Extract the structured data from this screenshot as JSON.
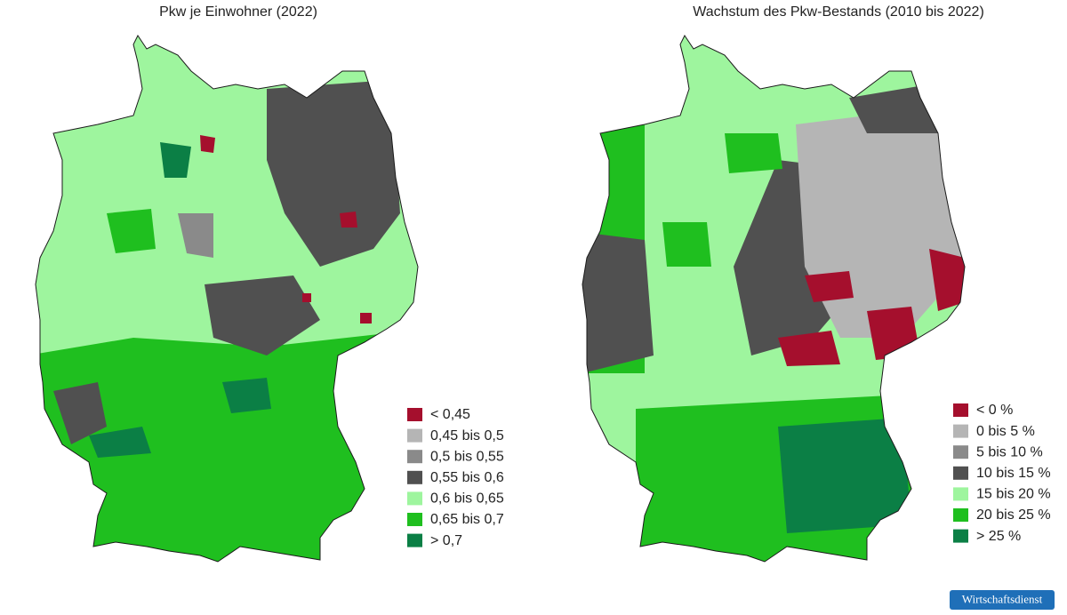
{
  "maps": [
    {
      "title": "Pkw je Einwohner (2022)",
      "legend": [
        {
          "label": "< 0,45",
          "color": "#a50f2d"
        },
        {
          "label": "0,45 bis 0,5",
          "color": "#b5b5b5"
        },
        {
          "label": "0,5 bis 0,55",
          "color": "#8a8a8a"
        },
        {
          "label": "0,55 bis 0,6",
          "color": "#505050"
        },
        {
          "label": "0,6 bis 0,65",
          "color": "#9ef59e"
        },
        {
          "label": "0,65 bis 0,7",
          "color": "#1fbf1f"
        },
        {
          "label": "> 0,7",
          "color": "#0b7f45"
        }
      ]
    },
    {
      "title": "Wachstum des Pkw-Bestands (2010 bis 2022)",
      "legend": [
        {
          "label": "< 0 %",
          "color": "#a50f2d"
        },
        {
          "label": "0 bis 5 %",
          "color": "#b5b5b5"
        },
        {
          "label": "5 bis 10 %",
          "color": "#8a8a8a"
        },
        {
          "label": "10 bis 15 %",
          "color": "#505050"
        },
        {
          "label": "15 bis 20 %",
          "color": "#9ef59e"
        },
        {
          "label": "20 bis 25 %",
          "color": "#1fbf1f"
        },
        {
          "label": "> 25 %",
          "color": "#0b7f45"
        }
      ]
    }
  ],
  "badge": "Wirtschaftsdienst"
}
